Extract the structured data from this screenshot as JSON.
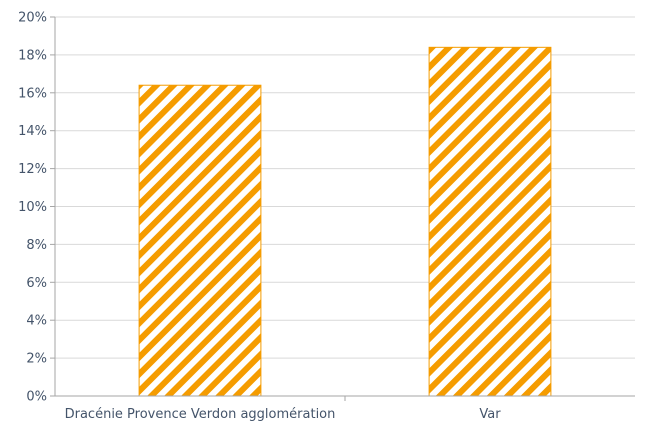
{
  "chart_data": {
    "type": "bar",
    "categories": [
      "Dracénie Provence Verdon agglomération",
      "Var"
    ],
    "values": [
      16.4,
      18.4
    ],
    "value_unit": "%",
    "ylim": [
      0,
      20
    ],
    "ytick_step": 2,
    "ytick_labels": [
      "0%",
      "2%",
      "4%",
      "6%",
      "8%",
      "10%",
      "12%",
      "14%",
      "16%",
      "18%",
      "20%"
    ],
    "grid": true,
    "legend": "none",
    "bar_fill": "diagonal-hatch",
    "colors": {
      "bar": "#f59c00",
      "grid": "#d9d9d9",
      "axis": "#a6a6a6",
      "text": "#44546a"
    }
  }
}
